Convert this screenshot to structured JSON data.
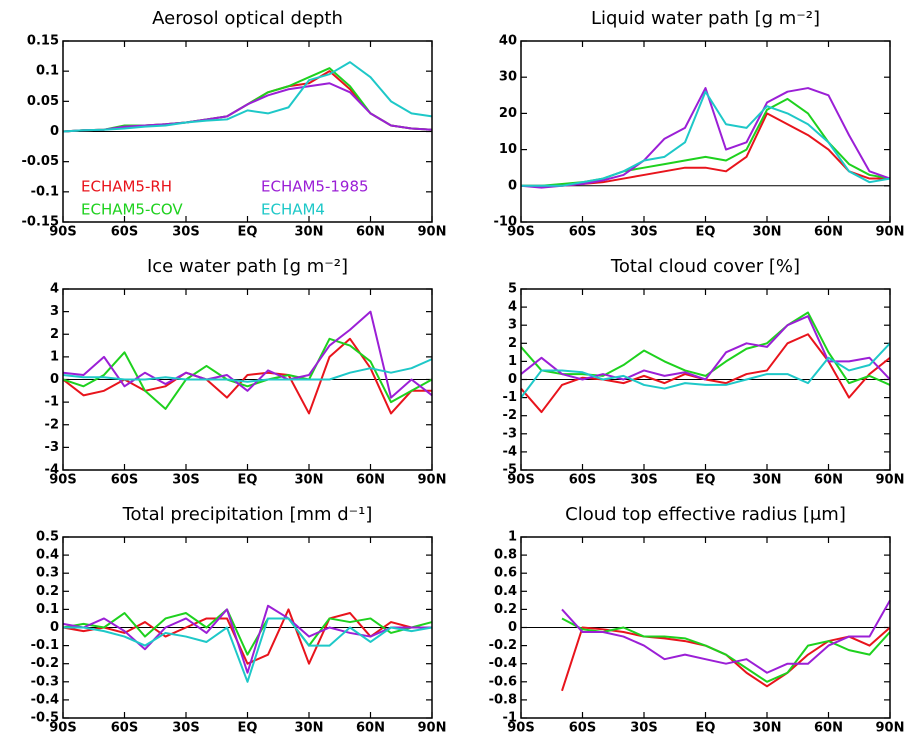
{
  "chart_data": [
    {
      "type": "line",
      "title": "Aerosol optical depth",
      "legend": "lower-left",
      "x": [
        -90,
        -80,
        -70,
        -60,
        -50,
        -40,
        -30,
        -20,
        -10,
        0,
        10,
        20,
        30,
        40,
        50,
        60,
        70,
        80,
        90
      ],
      "xlim": [
        -90,
        90
      ],
      "xticks": [
        {
          "value": -90,
          "label": "90S"
        },
        {
          "value": -60,
          "label": "60S"
        },
        {
          "value": -30,
          "label": "30S"
        },
        {
          "value": 0,
          "label": "EQ"
        },
        {
          "value": 30,
          "label": "30N"
        },
        {
          "value": 60,
          "label": "60N"
        },
        {
          "value": 90,
          "label": "90N"
        }
      ],
      "ylim": [
        -0.15,
        0.15
      ],
      "yticks": [
        -0.15,
        -0.1,
        -0.05,
        0,
        0.05,
        0.1,
        0.15
      ],
      "series": [
        {
          "name": "ECHAM5-RH",
          "color": "#e8141c",
          "values": [
            0,
            0.002,
            0.003,
            0.008,
            0.01,
            0.012,
            0.015,
            0.02,
            0.025,
            0.045,
            0.065,
            0.075,
            0.08,
            0.1,
            0.07,
            0.03,
            0.01,
            0.005,
            0.003
          ]
        },
        {
          "name": "ECHAM5-COV",
          "color": "#1ed11e",
          "values": [
            0,
            0.002,
            0.003,
            0.01,
            0.01,
            0.012,
            0.015,
            0.02,
            0.025,
            0.045,
            0.065,
            0.075,
            0.09,
            0.105,
            0.075,
            0.03,
            0.01,
            0.005,
            0.003
          ]
        },
        {
          "name": "ECHAM5-1985",
          "color": "#9b1fd6",
          "values": [
            0,
            0.002,
            0.003,
            0.008,
            0.01,
            0.012,
            0.015,
            0.02,
            0.025,
            0.045,
            0.06,
            0.07,
            0.075,
            0.08,
            0.065,
            0.03,
            0.01,
            0.005,
            0.003
          ]
        },
        {
          "name": "ECHAM4",
          "color": "#1ec8c8",
          "values": [
            0,
            0.002,
            0.003,
            0.005,
            0.008,
            0.01,
            0.015,
            0.018,
            0.02,
            0.035,
            0.03,
            0.04,
            0.085,
            0.095,
            0.115,
            0.09,
            0.05,
            0.03,
            0.025
          ]
        }
      ]
    },
    {
      "type": "line",
      "title": "Liquid water path [g m⁻²]",
      "x": [
        -90,
        -80,
        -70,
        -60,
        -50,
        -40,
        -30,
        -20,
        -10,
        0,
        10,
        20,
        30,
        40,
        50,
        60,
        70,
        80,
        90
      ],
      "xlim": [
        -90,
        90
      ],
      "xticks": [
        {
          "value": -90,
          "label": "90S"
        },
        {
          "value": -60,
          "label": "60S"
        },
        {
          "value": -30,
          "label": "30S"
        },
        {
          "value": 0,
          "label": "EQ"
        },
        {
          "value": 30,
          "label": "30N"
        },
        {
          "value": 60,
          "label": "60N"
        },
        {
          "value": 90,
          "label": "90N"
        }
      ],
      "ylim": [
        -10,
        40
      ],
      "yticks": [
        -10,
        0,
        10,
        20,
        30,
        40
      ],
      "series": [
        {
          "color": "#e8141c",
          "values": [
            0,
            0,
            0,
            0.5,
            1,
            2,
            3,
            4,
            5,
            5,
            4,
            8,
            20,
            17,
            14,
            10,
            4,
            2,
            2
          ]
        },
        {
          "color": "#1ed11e",
          "values": [
            0,
            0,
            0.5,
            1,
            2,
            4,
            5,
            6,
            7,
            8,
            7,
            10,
            21,
            24,
            20,
            12,
            6,
            3,
            2
          ]
        },
        {
          "color": "#9b1fd6",
          "values": [
            0,
            -0.5,
            0,
            0.5,
            1.5,
            3,
            7,
            13,
            16,
            27,
            10,
            12,
            23,
            26,
            27,
            25,
            14,
            4,
            2
          ]
        },
        {
          "color": "#1ec8c8",
          "values": [
            0,
            0,
            0,
            1,
            2,
            4,
            7,
            8,
            12,
            26,
            17,
            16,
            22,
            20,
            17,
            12,
            4,
            1,
            2
          ]
        }
      ]
    },
    {
      "type": "line",
      "title": "Ice water path [g m⁻²]",
      "x": [
        -90,
        -80,
        -70,
        -60,
        -50,
        -40,
        -30,
        -20,
        -10,
        0,
        10,
        20,
        30,
        40,
        50,
        60,
        70,
        80,
        90
      ],
      "xlim": [
        -90,
        90
      ],
      "xticks": [
        {
          "value": -90,
          "label": "90S"
        },
        {
          "value": -60,
          "label": "60S"
        },
        {
          "value": -30,
          "label": "30S"
        },
        {
          "value": 0,
          "label": "EQ"
        },
        {
          "value": 30,
          "label": "30N"
        },
        {
          "value": 60,
          "label": "60N"
        },
        {
          "value": 90,
          "label": "90N"
        }
      ],
      "ylim": [
        -4,
        4
      ],
      "yticks": [
        -4,
        -3,
        -2,
        -1,
        0,
        1,
        2,
        3,
        4
      ],
      "series": [
        {
          "color": "#e8141c",
          "values": [
            0,
            -0.7,
            -0.5,
            0,
            -0.5,
            -0.3,
            0.3,
            0,
            -0.8,
            0.2,
            0.3,
            0.2,
            -1.5,
            1,
            1.8,
            0.5,
            -1.5,
            -0.5,
            -0.5
          ]
        },
        {
          "color": "#1ed11e",
          "values": [
            0,
            -0.3,
            0.2,
            1.2,
            -0.5,
            -1.3,
            0,
            0.6,
            0,
            -0.3,
            0,
            0.2,
            0,
            1.8,
            1.5,
            0.8,
            -1,
            -0.5,
            0
          ]
        },
        {
          "color": "#9b1fd6",
          "values": [
            0.3,
            0.2,
            1,
            -0.3,
            0.3,
            -0.2,
            0.3,
            0,
            0.2,
            -0.5,
            0.4,
            0,
            0.2,
            1.5,
            2.2,
            3,
            -0.8,
            0,
            -0.7
          ]
        },
        {
          "color": "#1ec8c8",
          "values": [
            0.2,
            0.1,
            0.1,
            0,
            0,
            0.1,
            0,
            0,
            0,
            -0.1,
            0,
            0,
            0,
            0,
            0.3,
            0.5,
            0.3,
            0.5,
            0.9
          ]
        }
      ]
    },
    {
      "type": "line",
      "title": "Total cloud cover [%]",
      "x": [
        -90,
        -80,
        -70,
        -60,
        -50,
        -40,
        -30,
        -20,
        -10,
        0,
        10,
        20,
        30,
        40,
        50,
        60,
        70,
        80,
        90
      ],
      "xlim": [
        -90,
        90
      ],
      "xticks": [
        {
          "value": -90,
          "label": "90S"
        },
        {
          "value": -60,
          "label": "60S"
        },
        {
          "value": -30,
          "label": "30S"
        },
        {
          "value": 0,
          "label": "EQ"
        },
        {
          "value": 30,
          "label": "30N"
        },
        {
          "value": 60,
          "label": "60N"
        },
        {
          "value": 90,
          "label": "90N"
        }
      ],
      "ylim": [
        -5,
        5
      ],
      "yticks": [
        -5,
        -4,
        -3,
        -2,
        -1,
        0,
        1,
        2,
        3,
        4,
        5
      ],
      "series": [
        {
          "color": "#e8141c",
          "values": [
            -0.5,
            -1.8,
            -0.3,
            0.1,
            0,
            -0.2,
            0.2,
            -0.2,
            0.3,
            0,
            -0.2,
            0.3,
            0.5,
            2,
            2.5,
            1,
            -1,
            0.3,
            1.2
          ]
        },
        {
          "color": "#1ed11e",
          "values": [
            1.8,
            0.5,
            0.3,
            0.3,
            0.2,
            0.8,
            1.6,
            1,
            0.5,
            0.2,
            1,
            1.7,
            2,
            3,
            3.7,
            1.5,
            -0.2,
            0.2,
            -0.3
          ]
        },
        {
          "color": "#9b1fd6",
          "values": [
            0.3,
            1.2,
            0.3,
            0,
            0.3,
            0,
            0.5,
            0.2,
            0.4,
            0,
            1.5,
            2,
            1.8,
            3,
            3.5,
            1,
            1,
            1.2,
            0
          ]
        },
        {
          "color": "#1ec8c8",
          "values": [
            -1,
            0.5,
            0.5,
            0.4,
            0,
            0.2,
            -0.3,
            -0.5,
            -0.2,
            -0.3,
            -0.3,
            0,
            0.3,
            0.3,
            -0.2,
            1.2,
            0.5,
            0.8,
            2
          ]
        }
      ]
    },
    {
      "type": "line",
      "title": "Total precipitation [mm d⁻¹]",
      "x": [
        -90,
        -80,
        -70,
        -60,
        -50,
        -40,
        -30,
        -20,
        -10,
        0,
        10,
        20,
        30,
        40,
        50,
        60,
        70,
        80,
        90
      ],
      "xlim": [
        -90,
        90
      ],
      "xticks": [
        {
          "value": -90,
          "label": "90S"
        },
        {
          "value": -60,
          "label": "60S"
        },
        {
          "value": -30,
          "label": "30S"
        },
        {
          "value": 0,
          "label": "EQ"
        },
        {
          "value": 30,
          "label": "30N"
        },
        {
          "value": 60,
          "label": "60N"
        },
        {
          "value": 90,
          "label": "90N"
        }
      ],
      "ylim": [
        -0.5,
        0.5
      ],
      "yticks": [
        -0.5,
        -0.4,
        -0.3,
        -0.2,
        -0.1,
        0,
        0.1,
        0.2,
        0.3,
        0.4,
        0.5
      ],
      "series": [
        {
          "color": "#e8141c",
          "values": [
            0,
            -0.02,
            0,
            -0.03,
            0.03,
            -0.05,
            0,
            0.05,
            0.05,
            -0.2,
            -0.15,
            0.1,
            -0.2,
            0.05,
            0.08,
            -0.05,
            0.03,
            0,
            0
          ]
        },
        {
          "color": "#1ed11e",
          "values": [
            0,
            0.02,
            0,
            0.08,
            -0.05,
            0.05,
            0.08,
            0,
            0.1,
            -0.15,
            0.05,
            0.05,
            -0.1,
            0.05,
            0.03,
            0.05,
            -0.03,
            0,
            0.03
          ]
        },
        {
          "color": "#9b1fd6",
          "values": [
            0.02,
            0,
            0.05,
            -0.02,
            -0.12,
            0,
            0.05,
            -0.03,
            0.1,
            -0.25,
            0.12,
            0.05,
            -0.05,
            0,
            -0.03,
            -0.05,
            0,
            0,
            0
          ]
        },
        {
          "color": "#1ec8c8",
          "values": [
            0,
            0,
            -0.02,
            -0.05,
            -0.1,
            -0.03,
            -0.05,
            -0.08,
            0,
            -0.3,
            0.05,
            0.05,
            -0.1,
            -0.1,
            0,
            -0.08,
            0,
            -0.02,
            0
          ]
        }
      ]
    },
    {
      "type": "line",
      "title": "Cloud top effective radius [μm]",
      "x": [
        -90,
        -80,
        -70,
        -60,
        -50,
        -40,
        -30,
        -20,
        -10,
        0,
        10,
        20,
        30,
        40,
        50,
        60,
        70,
        80,
        90
      ],
      "xlim": [
        -90,
        90
      ],
      "xticks": [
        {
          "value": -90,
          "label": "90S"
        },
        {
          "value": -60,
          "label": "60S"
        },
        {
          "value": -30,
          "label": "30S"
        },
        {
          "value": 0,
          "label": "EQ"
        },
        {
          "value": 30,
          "label": "30N"
        },
        {
          "value": 60,
          "label": "60N"
        },
        {
          "value": 90,
          "label": "90N"
        }
      ],
      "ylim": [
        -1,
        1
      ],
      "yticks": [
        -1,
        -0.8,
        -0.6,
        -0.4,
        -0.2,
        0,
        0.2,
        0.4,
        0.6,
        0.8,
        1
      ],
      "series": [
        {
          "color": "#e8141c",
          "values": [
            null,
            null,
            -0.7,
            0,
            -0.02,
            -0.05,
            -0.1,
            -0.12,
            -0.15,
            -0.2,
            -0.3,
            -0.5,
            -0.65,
            -0.5,
            -0.3,
            -0.15,
            -0.1,
            -0.2,
            0
          ]
        },
        {
          "color": "#1ed11e",
          "values": [
            null,
            null,
            0.1,
            -0.02,
            -0.05,
            0,
            -0.1,
            -0.1,
            -0.12,
            -0.2,
            -0.3,
            -0.45,
            -0.6,
            -0.5,
            -0.2,
            -0.15,
            -0.25,
            -0.3,
            -0.05
          ]
        },
        {
          "color": "#9b1fd6",
          "values": [
            null,
            null,
            0.2,
            -0.05,
            -0.05,
            -0.1,
            -0.2,
            -0.35,
            -0.3,
            -0.35,
            -0.4,
            -0.35,
            -0.5,
            -0.4,
            -0.4,
            -0.2,
            -0.1,
            -0.1,
            0.3
          ]
        }
      ]
    }
  ]
}
